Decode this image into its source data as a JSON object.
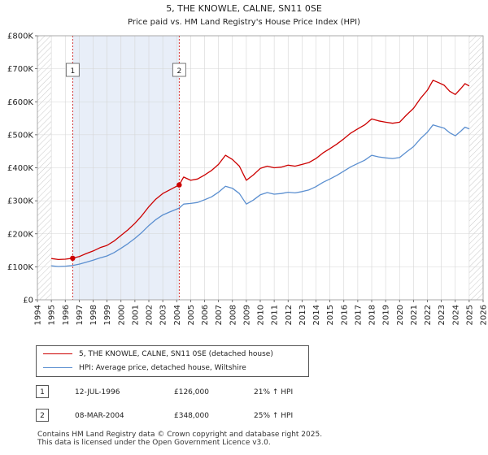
{
  "chart_data": {
    "type": "line",
    "title": "5, THE KNOWLE, CALNE, SN11 0SE",
    "subtitle": "Price paid vs. HM Land Registry's House Price Index (HPI)",
    "xlim": [
      1994,
      2026
    ],
    "ylim": [
      0,
      800000
    ],
    "x_ticks": [
      "1994",
      "1995",
      "1996",
      "1997",
      "1998",
      "1999",
      "2000",
      "2001",
      "2002",
      "2003",
      "2004",
      "2005",
      "2006",
      "2007",
      "2008",
      "2009",
      "2010",
      "2011",
      "2012",
      "2013",
      "2014",
      "2015",
      "2016",
      "2017",
      "2018",
      "2019",
      "2020",
      "2021",
      "2022",
      "2023",
      "2024",
      "2025",
      "2026"
    ],
    "y_ticks": [
      {
        "value": 0,
        "label": "£0"
      },
      {
        "value": 100000,
        "label": "£100K"
      },
      {
        "value": 200000,
        "label": "£200K"
      },
      {
        "value": 300000,
        "label": "£300K"
      },
      {
        "value": 400000,
        "label": "£400K"
      },
      {
        "value": 500000,
        "label": "£500K"
      },
      {
        "value": 600000,
        "label": "£600K"
      },
      {
        "value": 700000,
        "label": "£700K"
      },
      {
        "value": 800000,
        "label": "£800K"
      }
    ],
    "grid": true,
    "shaded_spans": [
      [
        1996.53,
        2004.18
      ]
    ],
    "hatched_spans": [
      [
        2025.0,
        2026.0
      ],
      [
        1994.0,
        1995.0
      ]
    ],
    "series": [
      {
        "name": "5, THE KNOWLE, CALNE, SN11 0SE (detached house)",
        "color": "#cc0000",
        "points": [
          [
            1995.0,
            125000
          ],
          [
            1995.5,
            122000
          ],
          [
            1996.0,
            123000
          ],
          [
            1996.53,
            126000
          ],
          [
            1997.0,
            131000
          ],
          [
            1997.5,
            140000
          ],
          [
            1998.0,
            148000
          ],
          [
            1998.5,
            158000
          ],
          [
            1999.0,
            165000
          ],
          [
            1999.5,
            178000
          ],
          [
            2000.0,
            195000
          ],
          [
            2000.5,
            212000
          ],
          [
            2001.0,
            232000
          ],
          [
            2001.5,
            255000
          ],
          [
            2002.0,
            282000
          ],
          [
            2002.5,
            305000
          ],
          [
            2003.0,
            322000
          ],
          [
            2003.5,
            333000
          ],
          [
            2004.18,
            348000
          ],
          [
            2004.5,
            372000
          ],
          [
            2005.0,
            362000
          ],
          [
            2005.5,
            366000
          ],
          [
            2006.0,
            378000
          ],
          [
            2006.5,
            392000
          ],
          [
            2007.0,
            410000
          ],
          [
            2007.5,
            438000
          ],
          [
            2008.0,
            425000
          ],
          [
            2008.5,
            405000
          ],
          [
            2009.0,
            362000
          ],
          [
            2009.5,
            378000
          ],
          [
            2010.0,
            398000
          ],
          [
            2010.5,
            405000
          ],
          [
            2011.0,
            400000
          ],
          [
            2011.5,
            402000
          ],
          [
            2012.0,
            408000
          ],
          [
            2012.5,
            405000
          ],
          [
            2013.0,
            410000
          ],
          [
            2013.5,
            416000
          ],
          [
            2014.0,
            428000
          ],
          [
            2014.5,
            445000
          ],
          [
            2015.0,
            458000
          ],
          [
            2015.5,
            472000
          ],
          [
            2016.0,
            488000
          ],
          [
            2016.5,
            505000
          ],
          [
            2017.0,
            518000
          ],
          [
            2017.5,
            530000
          ],
          [
            2018.0,
            548000
          ],
          [
            2018.5,
            542000
          ],
          [
            2019.0,
            538000
          ],
          [
            2019.5,
            535000
          ],
          [
            2020.0,
            538000
          ],
          [
            2020.5,
            560000
          ],
          [
            2021.0,
            580000
          ],
          [
            2021.5,
            610000
          ],
          [
            2022.0,
            635000
          ],
          [
            2022.4,
            665000
          ],
          [
            2022.8,
            658000
          ],
          [
            2023.2,
            650000
          ],
          [
            2023.6,
            632000
          ],
          [
            2024.0,
            622000
          ],
          [
            2024.4,
            640000
          ],
          [
            2024.7,
            655000
          ],
          [
            2025.0,
            648000
          ]
        ]
      },
      {
        "name": "HPI: Average price, detached house, Wiltshire",
        "color": "#5b8fd0",
        "points": [
          [
            1995.0,
            103000
          ],
          [
            1995.5,
            101000
          ],
          [
            1996.0,
            102000
          ],
          [
            1996.53,
            104000
          ],
          [
            1997.0,
            108000
          ],
          [
            1997.5,
            114000
          ],
          [
            1998.0,
            120000
          ],
          [
            1998.5,
            127000
          ],
          [
            1999.0,
            133000
          ],
          [
            1999.5,
            143000
          ],
          [
            2000.0,
            156000
          ],
          [
            2000.5,
            170000
          ],
          [
            2001.0,
            186000
          ],
          [
            2001.5,
            204000
          ],
          [
            2002.0,
            225000
          ],
          [
            2002.5,
            243000
          ],
          [
            2003.0,
            257000
          ],
          [
            2003.5,
            266000
          ],
          [
            2004.18,
            278000
          ],
          [
            2004.5,
            290000
          ],
          [
            2005.0,
            292000
          ],
          [
            2005.5,
            295000
          ],
          [
            2006.0,
            303000
          ],
          [
            2006.5,
            312000
          ],
          [
            2007.0,
            326000
          ],
          [
            2007.5,
            344000
          ],
          [
            2008.0,
            338000
          ],
          [
            2008.5,
            322000
          ],
          [
            2009.0,
            290000
          ],
          [
            2009.5,
            302000
          ],
          [
            2010.0,
            318000
          ],
          [
            2010.5,
            325000
          ],
          [
            2011.0,
            320000
          ],
          [
            2011.5,
            322000
          ],
          [
            2012.0,
            326000
          ],
          [
            2012.5,
            324000
          ],
          [
            2013.0,
            328000
          ],
          [
            2013.5,
            333000
          ],
          [
            2014.0,
            343000
          ],
          [
            2014.5,
            356000
          ],
          [
            2015.0,
            366000
          ],
          [
            2015.5,
            377000
          ],
          [
            2016.0,
            390000
          ],
          [
            2016.5,
            403000
          ],
          [
            2017.0,
            413000
          ],
          [
            2017.5,
            423000
          ],
          [
            2018.0,
            438000
          ],
          [
            2018.5,
            433000
          ],
          [
            2019.0,
            430000
          ],
          [
            2019.5,
            428000
          ],
          [
            2020.0,
            431000
          ],
          [
            2020.5,
            448000
          ],
          [
            2021.0,
            464000
          ],
          [
            2021.5,
            488000
          ],
          [
            2022.0,
            508000
          ],
          [
            2022.4,
            530000
          ],
          [
            2022.8,
            525000
          ],
          [
            2023.2,
            520000
          ],
          [
            2023.6,
            506000
          ],
          [
            2024.0,
            497000
          ],
          [
            2024.4,
            511000
          ],
          [
            2024.7,
            523000
          ],
          [
            2025.0,
            518000
          ]
        ]
      }
    ],
    "annotations": [
      {
        "label": "1",
        "x": 1996.53,
        "y": 126000
      },
      {
        "label": "2",
        "x": 2004.18,
        "y": 348000
      }
    ]
  },
  "legend": {
    "property_label": "5, THE KNOWLE, CALNE, SN11 0SE (detached house)",
    "hpi_label": "HPI: Average price, detached house, Wiltshire"
  },
  "sales": [
    {
      "badge": "1",
      "date": "12-JUL-1996",
      "price": "£126,000",
      "hpi": "21% ↑ HPI"
    },
    {
      "badge": "2",
      "date": "08-MAR-2004",
      "price": "£348,000",
      "hpi": "25% ↑ HPI"
    }
  ],
  "footer": {
    "line1": "Contains HM Land Registry data © Crown copyright and database right 2025.",
    "line2": "This data is licensed under the Open Government Licence v3.0."
  },
  "colors": {
    "property": "#cc0000",
    "hpi": "#5b8fd0",
    "shade": "#e8eef8",
    "grid": "#d5d5d5"
  }
}
